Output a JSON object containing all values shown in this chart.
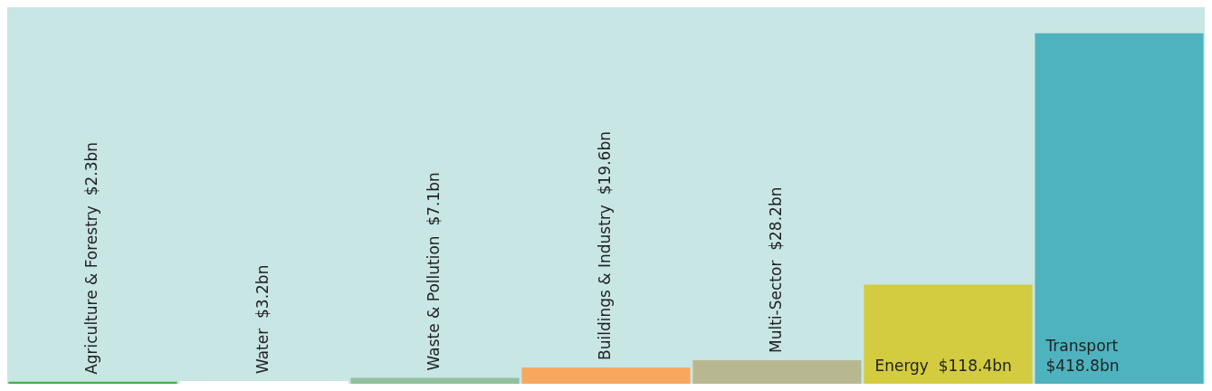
{
  "chart_data": {
    "type": "bar",
    "categories": [
      "Agriculture & Forestry",
      "Water",
      "Waste & Pollution",
      "Buildings & Industry",
      "Multi-Sector",
      "Energy",
      "Transport"
    ],
    "values": [
      2.3,
      3.2,
      7.1,
      19.6,
      28.2,
      118.4,
      418.8
    ],
    "value_labels": [
      "$2.3bn",
      "$3.2bn",
      "$7.1bn",
      "$19.6bn",
      "$28.2bn",
      "$118.4bn",
      "$418.8bn"
    ],
    "colors": [
      "#43b04a",
      "#ffffff",
      "#8fc09f",
      "#f8a85e",
      "#b8b890",
      "#d4cc40",
      "#4eb3bf"
    ],
    "legend": false
  }
}
